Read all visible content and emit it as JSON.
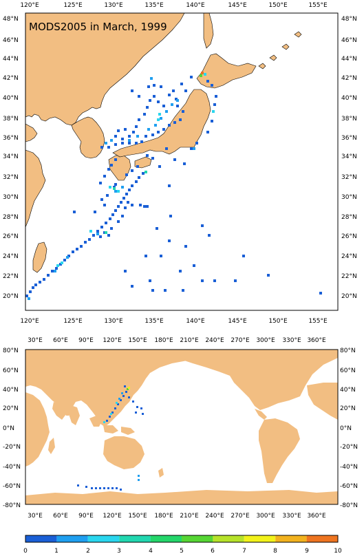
{
  "map": {
    "title": "MODS2005 in March, 1999",
    "land_color": "#f2be82",
    "ocean_color": "#ffffff",
    "top_panel": {
      "x_ticks": [
        "120°E",
        "125°E",
        "130°E",
        "135°E",
        "140°E",
        "145°E",
        "150°E",
        "155°E"
      ],
      "y_ticks": [
        "48°N",
        "46°N",
        "44°N",
        "42°N",
        "40°N",
        "38°N",
        "36°N",
        "34°N",
        "32°N",
        "30°N",
        "28°N",
        "26°N",
        "24°N",
        "22°N",
        "20°N"
      ]
    },
    "bottom_panel": {
      "x_ticks": [
        "30°E",
        "60°E",
        "90°E",
        "120°E",
        "150°E",
        "180°E",
        "210°E",
        "240°E",
        "270°E",
        "300°E",
        "330°E",
        "360°E"
      ],
      "y_ticks": [
        "80°N",
        "60°N",
        "40°N",
        "20°N",
        "0°N",
        "-20°N",
        "-40°N",
        "-60°N",
        "-80°N"
      ]
    },
    "colorbar": {
      "labels": [
        "0",
        "1",
        "2",
        "3",
        "4",
        "5",
        "6",
        "7",
        "8",
        "9",
        "10"
      ],
      "colors": [
        "#1a5fd6",
        "#1f9ff0",
        "#2ad6ee",
        "#22d7b0",
        "#24d66a",
        "#56d634",
        "#b6e22a",
        "#f2f21a",
        "#f2b21e",
        "#ee7420"
      ]
    }
  }
}
